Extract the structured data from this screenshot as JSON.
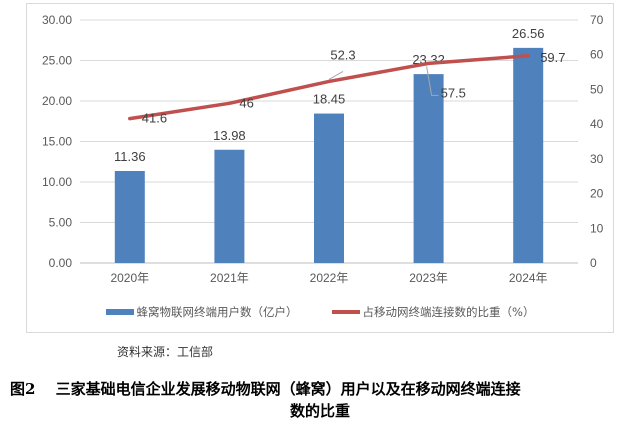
{
  "chart_data": {
    "type": "bar+line",
    "categories": [
      "2020年",
      "2021年",
      "2022年",
      "2023年",
      "2024年"
    ],
    "series": [
      {
        "name": "蜂窝物联网终端用户数（亿户）",
        "type": "bar",
        "axis": "left",
        "values": [
          11.36,
          13.98,
          18.45,
          23.32,
          26.56
        ],
        "labels": [
          "11.36",
          "13.98",
          "18.45",
          "23.32",
          "26.56"
        ],
        "color": "#4f81bd"
      },
      {
        "name": "占移动网终端连接数的比重（%）",
        "type": "line",
        "axis": "right",
        "values": [
          41.6,
          46,
          52.3,
          57.5,
          59.7
        ],
        "labels": [
          "41.6",
          "46",
          "52.3",
          "57.5",
          "59.7"
        ],
        "color": "#c0504d"
      }
    ],
    "left_axis": {
      "ylim": [
        0,
        30
      ],
      "ticks": [
        "0.00",
        "5.00",
        "10.00",
        "15.00",
        "20.00",
        "25.00",
        "30.00"
      ]
    },
    "right_axis": {
      "ylim": [
        0,
        70
      ],
      "ticks": [
        "0",
        "10",
        "20",
        "30",
        "40",
        "50",
        "60",
        "70"
      ]
    },
    "grid": true,
    "legend": "bottom"
  },
  "source": "资料来源：工信部",
  "caption": {
    "line1": "图2　 三家基础电信企业发展移动物联网（蜂窝）用户以及在移动网终端连接",
    "line2": "数的比重"
  }
}
